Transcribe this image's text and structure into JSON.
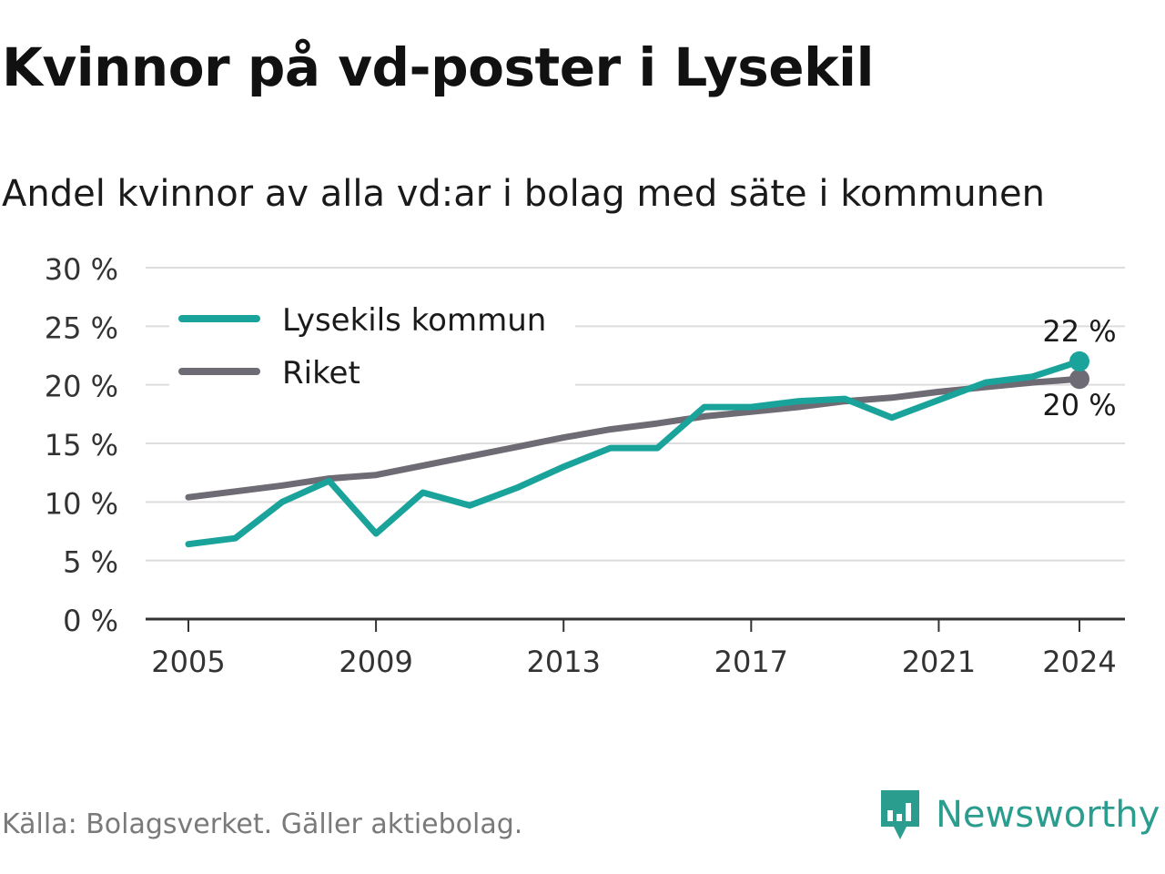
{
  "title": "Kvinnor på vd-poster i Lysekil",
  "subtitle": "Andel kvinnor av alla vd:ar i bolag med säte i kommunen",
  "source": "Källa: Bolagsverket. Gäller aktiebolag.",
  "brand": {
    "name": "Newsworthy",
    "icon": "newsworthy-logo-icon"
  },
  "colors": {
    "lysekil": "#1aa39a",
    "riket": "#6e6b74",
    "grid": "#dddddd",
    "axis": "#333333"
  },
  "chart_data": {
    "type": "line",
    "x": [
      2005,
      2006,
      2007,
      2008,
      2009,
      2010,
      2011,
      2012,
      2013,
      2014,
      2015,
      2016,
      2017,
      2018,
      2019,
      2020,
      2021,
      2022,
      2023,
      2024
    ],
    "series": [
      {
        "name": "Lysekils kommun",
        "values": [
          6.4,
          6.9,
          10.0,
          11.8,
          7.3,
          10.8,
          9.7,
          11.2,
          13.0,
          14.6,
          14.6,
          18.1,
          18.1,
          18.6,
          18.8,
          17.2,
          18.7,
          20.2,
          20.7,
          22.0
        ],
        "end_label": "22 %"
      },
      {
        "name": "Riket",
        "values": [
          10.4,
          10.9,
          11.4,
          12.0,
          12.3,
          13.1,
          13.9,
          14.7,
          15.5,
          16.2,
          16.7,
          17.3,
          17.7,
          18.1,
          18.6,
          18.9,
          19.4,
          19.8,
          20.2,
          20.5
        ],
        "end_label": "20 %"
      }
    ],
    "ylim": [
      0,
      30
    ],
    "yticks": [
      0,
      5,
      10,
      15,
      20,
      25,
      30
    ],
    "ytick_labels": [
      "0 %",
      "5 %",
      "10 %",
      "15 %",
      "20 %",
      "25 %",
      "30 %"
    ],
    "xticks": [
      2005,
      2009,
      2013,
      2017,
      2021,
      2024
    ],
    "xtick_labels": [
      "2005",
      "2009",
      "2013",
      "2017",
      "2021",
      "2024"
    ],
    "grid": true,
    "legend": "top-left"
  }
}
